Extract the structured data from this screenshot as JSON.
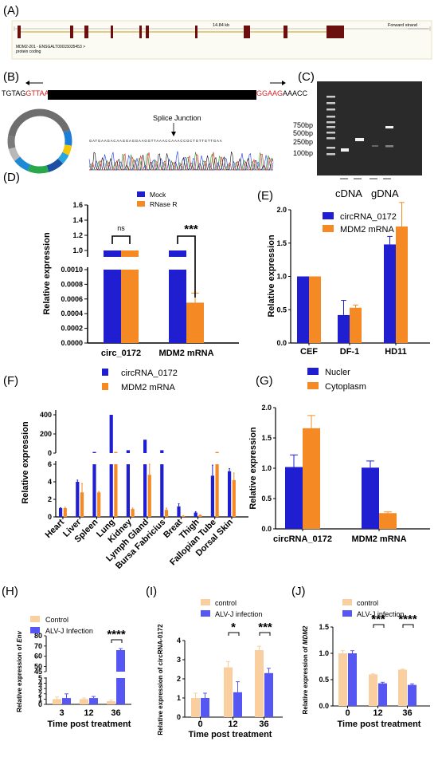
{
  "panel_labels": [
    "(A)",
    "(B)",
    "(C)",
    "(D)",
    "(E)",
    "(F)",
    "(G)",
    "(H)",
    "(I)",
    "(J)"
  ],
  "colors": {
    "blue": "#1f1fd1",
    "orange": "#f58a25",
    "peach": "#f9cf9f",
    "lightblue": "#5656f2",
    "exon": "#6b0f0f"
  },
  "panel_a": {
    "length_label": "14.84 kb",
    "strand_label": "Forward strand",
    "transcript_line1": "MDM2-201 - ENSGALT00015035453 >",
    "transcript_line2": "protein coding"
  },
  "panel_b": {
    "seq_left_black": "TGTAG",
    "seq_left_red": "GTTAA",
    "seq_right_red": "GGAAG",
    "seq_right_black": "AAACC",
    "splice_label": "Splice Junction",
    "trace_sequence": "GATGAAGACAAGGAGGAAGGTTAAACCAAACCGCTGTTGTTGAA"
  },
  "panel_c": {
    "ladder_labels": [
      "750bp",
      "500bp",
      "250bp",
      "100bp"
    ],
    "group_labels": [
      "cDNA",
      "gDNA"
    ]
  },
  "chart_data": [
    {
      "id": "D",
      "type": "bar",
      "categories": [
        "circ_0172",
        "MDM2 mRNA"
      ],
      "series": [
        {
          "name": "Mock",
          "values": [
            1.0,
            1.0
          ],
          "errors": [
            0.0,
            0.005
          ]
        },
        {
          "name": "RNase R",
          "values": [
            1.0,
            0.00055
          ],
          "errors": [
            0.005,
            0.00013
          ]
        }
      ],
      "ylabel": "Relative expression",
      "upper_ticks": [
        "1.6",
        "1.4",
        "1.2",
        "1.0"
      ],
      "lower_ticks": [
        "0.0010",
        "0.0008",
        "0.0006",
        "0.0004",
        "0.0002",
        "0.0000"
      ],
      "significance": [
        "ns",
        "***"
      ]
    },
    {
      "id": "E",
      "type": "bar",
      "categories": [
        "CEF",
        "DF-1",
        "HD11"
      ],
      "series": [
        {
          "name": "circRNA_0172",
          "values": [
            1.0,
            0.42,
            1.48
          ],
          "errors": [
            0.0,
            0.22,
            0.12
          ]
        },
        {
          "name": "MDM2 mRNA",
          "values": [
            1.0,
            0.53,
            1.75
          ],
          "errors": [
            0.0,
            0.04,
            0.36
          ]
        }
      ],
      "ylabel": "Relative expression",
      "ylim": [
        0,
        2.0
      ],
      "yticks": [
        "0.0",
        "0.5",
        "1.0",
        "1.5",
        "2.0"
      ]
    },
    {
      "id": "F",
      "type": "bar",
      "categories": [
        "Heart",
        "Liver",
        "Spleen",
        "Lung",
        "Kidney",
        "Lymph Gland",
        "Bursa Fabricius",
        "Breat",
        "Thigh",
        "Fallopian Tube",
        "Dorsal Skin"
      ],
      "series": [
        {
          "name": "circRNA_0172",
          "values": [
            1.0,
            4.0,
            12,
            410,
            30,
            140,
            30,
            1.2,
            0.5,
            4.7,
            5.2
          ],
          "errors": [
            0.05,
            0.2,
            0,
            12,
            0,
            0,
            0,
            0.3,
            0.1,
            1.2,
            0.3
          ]
        },
        {
          "name": "MDM2 mRNA",
          "values": [
            1.0,
            2.8,
            2.8,
            12,
            0.9,
            4.8,
            0.8,
            0.1,
            0.2,
            12,
            4.2
          ],
          "errors": [
            0.1,
            1.0,
            0.1,
            0,
            0.1,
            1.2,
            0.2,
            0.05,
            0.05,
            0,
            0.8
          ]
        }
      ],
      "ylabel": "Relative expression",
      "upper_ticks": [
        "400",
        "200",
        "0"
      ],
      "lower_ticks": [
        "6",
        "4",
        "2",
        "0"
      ]
    },
    {
      "id": "G",
      "type": "bar",
      "categories": [
        "circRNA_0172",
        "MDM2 mRNA"
      ],
      "series": [
        {
          "name": "Nucler",
          "values": [
            1.02,
            1.01
          ],
          "errors": [
            0.2,
            0.11
          ]
        },
        {
          "name": "Cytoplasm",
          "values": [
            1.66,
            0.26
          ],
          "errors": [
            0.21,
            0.02
          ]
        }
      ],
      "ylabel": "Relative expression",
      "ylim": [
        0,
        2.0
      ],
      "yticks": [
        "0.0",
        "0.5",
        "1.0",
        "1.5",
        "2.0"
      ]
    },
    {
      "id": "H",
      "type": "bar",
      "categories": [
        "3",
        "12",
        "36"
      ],
      "series": [
        {
          "name": "Control",
          "values": [
            1.0,
            1.0,
            0.6
          ],
          "errors": [
            0.4,
            0.2,
            0.2
          ]
        },
        {
          "name": "ALV-J Infection",
          "values": [
            1.2,
            1.2,
            66
          ],
          "errors": [
            0.8,
            0.3,
            1.5
          ]
        }
      ],
      "xlabel": "Time post treatment",
      "ylabel_main": "Relative expression of ",
      "ylabel_gene": "Env",
      "upper_ticks": [
        "80",
        "70",
        "60",
        "50",
        "45"
      ],
      "lower_ticks": [
        "5",
        "4",
        "3",
        "2",
        "1",
        "0"
      ],
      "significance": [
        "****"
      ]
    },
    {
      "id": "I",
      "type": "bar",
      "categories": [
        "0",
        "12",
        "36"
      ],
      "series": [
        {
          "name": "control",
          "values": [
            1.0,
            2.6,
            3.5
          ],
          "errors": [
            0.25,
            0.3,
            0.2
          ]
        },
        {
          "name": "ALV-J infection",
          "values": [
            1.0,
            1.3,
            2.3
          ],
          "errors": [
            0.25,
            0.55,
            0.25
          ]
        }
      ],
      "xlabel": "Time post treatment",
      "ylabel": "Relative expression of circRNA-0172",
      "ylim": [
        0,
        4
      ],
      "yticks": [
        "0",
        "1",
        "2",
        "3",
        "4"
      ],
      "significance": [
        "*",
        "***"
      ]
    },
    {
      "id": "J",
      "type": "bar",
      "categories": [
        "0",
        "12",
        "36"
      ],
      "series": [
        {
          "name": "control",
          "values": [
            1.0,
            0.6,
            0.69
          ],
          "errors": [
            0.05,
            0.01,
            0.01
          ]
        },
        {
          "name": "ALV-J infection",
          "values": [
            1.0,
            0.43,
            0.4
          ],
          "errors": [
            0.05,
            0.02,
            0.02
          ]
        }
      ],
      "xlabel": "Time post treatment",
      "ylabel_main": "Relative expression of ",
      "ylabel_gene": "MDM2",
      "ylim": [
        0,
        1.5
      ],
      "yticks": [
        "0.0",
        "0.5",
        "1.0",
        "1.5"
      ],
      "significance": [
        "***",
        "****"
      ]
    }
  ]
}
